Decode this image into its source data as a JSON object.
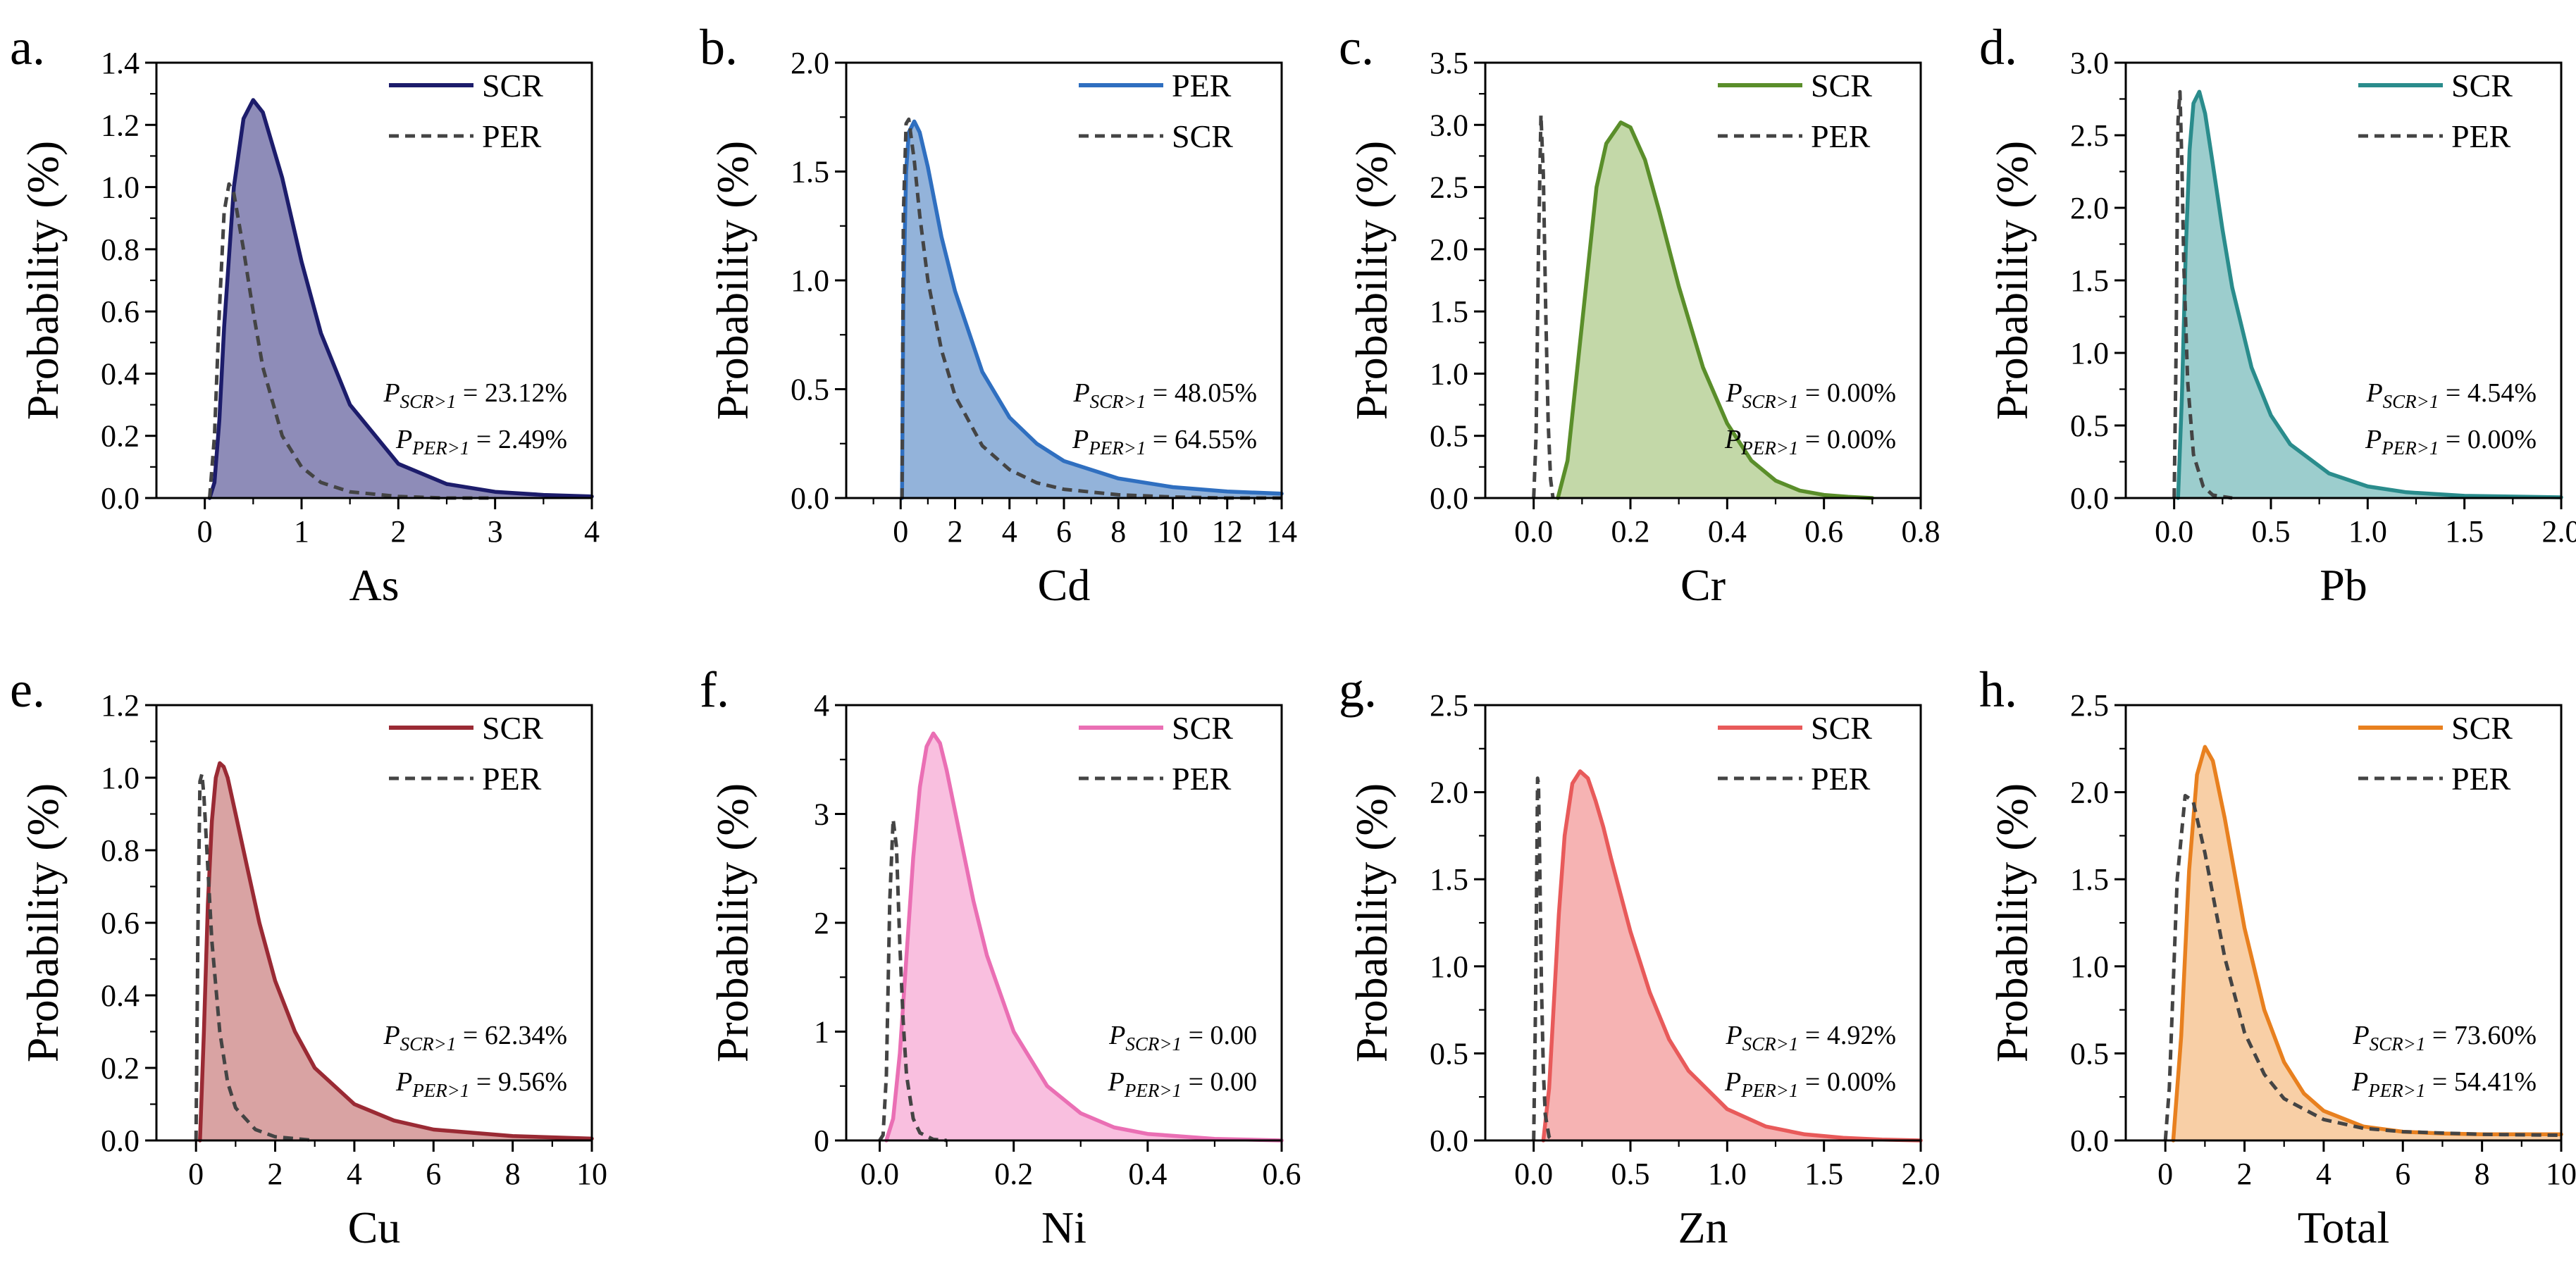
{
  "chart_data": [
    {
      "type": "area",
      "panel_label": "a.",
      "xlabel": "As",
      "ylabel": "Probability (%)",
      "xlim": [
        -0.5,
        4
      ],
      "ylim": [
        0,
        1.4
      ],
      "xticks": [
        0,
        1,
        2,
        3,
        4
      ],
      "yticks": [
        0.0,
        0.2,
        0.4,
        0.6,
        0.8,
        1.0,
        1.2,
        1.4
      ],
      "xtick_labels": [
        "0",
        "1",
        "2",
        "3",
        "4"
      ],
      "ytick_labels": [
        "0.0",
        "0.2",
        "0.4",
        "0.6",
        "0.8",
        "1.0",
        "1.2",
        "1.4"
      ],
      "legend": [
        "SCR",
        "PER"
      ],
      "series": [
        {
          "name": "SCR",
          "style": "solid-filled",
          "color": "#1c1c6b",
          "fill": "#8e8cb8",
          "x": [
            0.05,
            0.1,
            0.15,
            0.2,
            0.3,
            0.4,
            0.5,
            0.6,
            0.8,
            1.0,
            1.2,
            1.5,
            2.0,
            2.5,
            3.0,
            3.5,
            4.0
          ],
          "y": [
            0.0,
            0.05,
            0.25,
            0.55,
            1.0,
            1.22,
            1.28,
            1.24,
            1.03,
            0.76,
            0.53,
            0.3,
            0.11,
            0.045,
            0.02,
            0.01,
            0.005
          ]
        },
        {
          "name": "PER",
          "style": "dashed",
          "color": "#444444",
          "x": [
            0.05,
            0.1,
            0.15,
            0.2,
            0.25,
            0.3,
            0.4,
            0.5,
            0.6,
            0.8,
            1.0,
            1.2,
            1.5,
            2.0,
            2.5,
            3.0
          ],
          "y": [
            0.0,
            0.2,
            0.6,
            0.92,
            1.01,
            0.98,
            0.8,
            0.6,
            0.42,
            0.2,
            0.1,
            0.05,
            0.02,
            0.005,
            0.0,
            0.0
          ]
        }
      ],
      "annotations": [
        {
          "sub": "SCR>1",
          "value": "= 23.12%"
        },
        {
          "sub": "PER>1",
          "value": "= 2.49%"
        }
      ]
    },
    {
      "type": "area",
      "panel_label": "b.",
      "xlabel": "Cd",
      "ylabel": "Probability (%)",
      "xlim": [
        -2,
        14
      ],
      "ylim": [
        0,
        2.0
      ],
      "xticks": [
        0,
        2,
        4,
        6,
        8,
        10,
        12,
        14
      ],
      "yticks": [
        0.0,
        0.5,
        1.0,
        1.5,
        2.0
      ],
      "xtick_labels": [
        "0",
        "2",
        "4",
        "6",
        "8",
        "10",
        "12",
        "14"
      ],
      "ytick_labels": [
        "0.0",
        "0.5",
        "1.0",
        "1.5",
        "2.0"
      ],
      "legend": [
        "PER",
        "SCR"
      ],
      "series": [
        {
          "name": "PER",
          "style": "solid-filled",
          "color": "#2f6fc0",
          "fill": "#93b3da",
          "x": [
            0.05,
            0.1,
            0.2,
            0.3,
            0.5,
            0.7,
            1.0,
            1.5,
            2.0,
            3.0,
            4.0,
            5.0,
            6.0,
            8.0,
            10.0,
            12.0,
            14.0
          ],
          "y": [
            0.0,
            0.9,
            1.5,
            1.68,
            1.73,
            1.68,
            1.52,
            1.2,
            0.95,
            0.58,
            0.37,
            0.25,
            0.17,
            0.09,
            0.05,
            0.03,
            0.02
          ]
        },
        {
          "name": "SCR",
          "style": "dashed",
          "color": "#444444",
          "x": [
            0.05,
            0.1,
            0.2,
            0.3,
            0.5,
            0.7,
            1.0,
            1.5,
            2.0,
            3.0,
            4.0,
            5.0,
            6.0,
            8.0,
            10.0,
            12.0,
            14.0
          ],
          "y": [
            0.0,
            1.3,
            1.72,
            1.74,
            1.55,
            1.3,
            1.0,
            0.68,
            0.47,
            0.24,
            0.13,
            0.07,
            0.04,
            0.015,
            0.005,
            0.0,
            0.0
          ]
        }
      ],
      "annotations": [
        {
          "sub": "SCR>1",
          "value": "= 48.05%"
        },
        {
          "sub": "PER>1",
          "value": "= 64.55%"
        }
      ]
    },
    {
      "type": "area",
      "panel_label": "c.",
      "xlabel": "Cr",
      "ylabel": "Probability (%)",
      "xlim": [
        -0.1,
        0.8
      ],
      "ylim": [
        0,
        3.5
      ],
      "xticks": [
        0.0,
        0.2,
        0.4,
        0.6,
        0.8
      ],
      "yticks": [
        0.0,
        0.5,
        1.0,
        1.5,
        2.0,
        2.5,
        3.0,
        3.5
      ],
      "xtick_labels": [
        "0.0",
        "0.2",
        "0.4",
        "0.6",
        "0.8"
      ],
      "ytick_labels": [
        "0.0",
        "0.5",
        "1.0",
        "1.5",
        "2.0",
        "2.5",
        "3.0",
        "3.5"
      ],
      "legend": [
        "SCR",
        "PER"
      ],
      "series": [
        {
          "name": "SCR",
          "style": "solid-filled",
          "color": "#5a8e2a",
          "fill": "#c3d8a8",
          "x": [
            0.05,
            0.07,
            0.1,
            0.13,
            0.15,
            0.18,
            0.2,
            0.23,
            0.26,
            0.3,
            0.35,
            0.4,
            0.45,
            0.5,
            0.55,
            0.6,
            0.65,
            0.7
          ],
          "y": [
            0.0,
            0.3,
            1.4,
            2.5,
            2.85,
            3.02,
            2.98,
            2.72,
            2.3,
            1.7,
            1.05,
            0.6,
            0.3,
            0.14,
            0.06,
            0.025,
            0.01,
            0.0
          ]
        },
        {
          "name": "PER",
          "style": "dashed",
          "color": "#444444",
          "x": [
            0.0,
            0.005,
            0.01,
            0.015,
            0.02,
            0.025,
            0.03,
            0.035,
            0.04
          ],
          "y": [
            0.0,
            0.5,
            2.0,
            3.08,
            2.6,
            1.5,
            0.6,
            0.15,
            0.0
          ]
        }
      ],
      "annotations": [
        {
          "sub": "SCR>1",
          "value": "= 0.00%"
        },
        {
          "sub": "PER>1",
          "value": "= 0.00%"
        }
      ]
    },
    {
      "type": "area",
      "panel_label": "d.",
      "xlabel": "Pb",
      "ylabel": "Probability (%)",
      "xlim": [
        -0.25,
        2.0
      ],
      "ylim": [
        0,
        3.0
      ],
      "xticks": [
        0.0,
        0.5,
        1.0,
        1.5,
        2.0
      ],
      "yticks": [
        0.0,
        0.5,
        1.0,
        1.5,
        2.0,
        2.5,
        3.0
      ],
      "xtick_labels": [
        "0.0",
        "0.5",
        "1.0",
        "1.5",
        "2.0"
      ],
      "ytick_labels": [
        "0.0",
        "0.5",
        "1.0",
        "1.5",
        "2.0",
        "2.5",
        "3.0"
      ],
      "legend": [
        "SCR",
        "PER"
      ],
      "series": [
        {
          "name": "SCR",
          "style": "solid-filled",
          "color": "#2a8c8c",
          "fill": "#9ccdcd",
          "x": [
            0.02,
            0.04,
            0.06,
            0.08,
            0.1,
            0.13,
            0.16,
            0.2,
            0.25,
            0.3,
            0.4,
            0.5,
            0.6,
            0.8,
            1.0,
            1.2,
            1.5,
            2.0
          ],
          "y": [
            0.0,
            0.7,
            1.7,
            2.4,
            2.72,
            2.8,
            2.65,
            2.3,
            1.85,
            1.45,
            0.9,
            0.57,
            0.37,
            0.17,
            0.08,
            0.04,
            0.015,
            0.005
          ]
        },
        {
          "name": "PER",
          "style": "dashed",
          "color": "#444444",
          "x": [
            0.0,
            0.01,
            0.02,
            0.03,
            0.04,
            0.05,
            0.07,
            0.1,
            0.15,
            0.2,
            0.3
          ],
          "y": [
            0.0,
            1.0,
            2.6,
            2.8,
            2.3,
            1.6,
            0.8,
            0.3,
            0.08,
            0.02,
            0.0
          ]
        }
      ],
      "annotations": [
        {
          "sub": "SCR>1",
          "value": "= 4.54%"
        },
        {
          "sub": "PER>1",
          "value": "= 0.00%"
        }
      ]
    },
    {
      "type": "area",
      "panel_label": "e.",
      "xlabel": "Cu",
      "ylabel": "Probability (%)",
      "xlim": [
        -1,
        10
      ],
      "ylim": [
        0,
        1.2
      ],
      "xticks": [
        0,
        2,
        4,
        6,
        8,
        10
      ],
      "yticks": [
        0.0,
        0.2,
        0.4,
        0.6,
        0.8,
        1.0,
        1.2
      ],
      "xtick_labels": [
        "0",
        "2",
        "4",
        "6",
        "8",
        "10"
      ],
      "ytick_labels": [
        "0.0",
        "0.2",
        "0.4",
        "0.6",
        "0.8",
        "1.0",
        "1.2"
      ],
      "legend": [
        "SCR",
        "PER"
      ],
      "series": [
        {
          "name": "SCR",
          "style": "solid-filled",
          "color": "#9a2a34",
          "fill": "#d9a3a3",
          "x": [
            0.1,
            0.2,
            0.3,
            0.4,
            0.5,
            0.6,
            0.7,
            0.8,
            1.0,
            1.3,
            1.6,
            2.0,
            2.5,
            3.0,
            4.0,
            5.0,
            6.0,
            8.0,
            10.0
          ],
          "y": [
            0.0,
            0.3,
            0.65,
            0.88,
            1.0,
            1.04,
            1.03,
            1.0,
            0.9,
            0.75,
            0.6,
            0.44,
            0.3,
            0.2,
            0.1,
            0.055,
            0.03,
            0.012,
            0.005
          ]
        },
        {
          "name": "PER",
          "style": "dashed",
          "color": "#444444",
          "x": [
            0.0,
            0.05,
            0.1,
            0.15,
            0.2,
            0.3,
            0.4,
            0.6,
            0.8,
            1.0,
            1.5,
            2.0,
            3.0
          ],
          "y": [
            0.0,
            0.6,
            0.99,
            1.01,
            0.95,
            0.75,
            0.55,
            0.3,
            0.16,
            0.09,
            0.03,
            0.01,
            0.0
          ]
        }
      ],
      "annotations": [
        {
          "sub": "SCR>1",
          "value": "= 62.34%"
        },
        {
          "sub": "PER>1",
          "value": "= 9.56%"
        }
      ]
    },
    {
      "type": "area",
      "panel_label": "f.",
      "xlabel": "Ni",
      "ylabel": "Probability (%)",
      "xlim": [
        -0.05,
        0.6
      ],
      "ylim": [
        0,
        4
      ],
      "xticks": [
        0.0,
        0.2,
        0.4,
        0.6
      ],
      "yticks": [
        0,
        1,
        2,
        3,
        4
      ],
      "xtick_labels": [
        "0.0",
        "0.2",
        "0.4",
        "0.6"
      ],
      "ytick_labels": [
        "0",
        "1",
        "2",
        "3",
        "4"
      ],
      "legend": [
        "SCR",
        "PER"
      ],
      "series": [
        {
          "name": "SCR",
          "style": "solid-filled",
          "color": "#ea6fb4",
          "fill": "#f9bfdf",
          "x": [
            0.01,
            0.02,
            0.03,
            0.04,
            0.05,
            0.06,
            0.07,
            0.08,
            0.09,
            0.1,
            0.12,
            0.14,
            0.16,
            0.2,
            0.25,
            0.3,
            0.35,
            0.4,
            0.5,
            0.6
          ],
          "y": [
            0.0,
            0.2,
            0.8,
            1.7,
            2.6,
            3.25,
            3.62,
            3.74,
            3.65,
            3.4,
            2.8,
            2.2,
            1.7,
            1.0,
            0.5,
            0.25,
            0.12,
            0.06,
            0.015,
            0.0
          ]
        },
        {
          "name": "PER",
          "style": "dashed",
          "color": "#444444",
          "x": [
            0.0,
            0.005,
            0.01,
            0.015,
            0.02,
            0.025,
            0.03,
            0.035,
            0.04,
            0.05,
            0.06,
            0.08,
            0.1
          ],
          "y": [
            0.0,
            0.05,
            0.6,
            2.2,
            2.95,
            2.7,
            1.8,
            1.1,
            0.6,
            0.2,
            0.07,
            0.01,
            0.0
          ]
        }
      ],
      "annotations": [
        {
          "sub": "SCR>1",
          "value": "= 0.00"
        },
        {
          "sub": "PER>1",
          "value": "= 0.00"
        }
      ]
    },
    {
      "type": "area",
      "panel_label": "g.",
      "xlabel": "Zn",
      "ylabel": "Probability (%)",
      "xlim": [
        -0.25,
        2.0
      ],
      "ylim": [
        0,
        2.5
      ],
      "xticks": [
        0.0,
        0.5,
        1.0,
        1.5,
        2.0
      ],
      "yticks": [
        0.0,
        0.5,
        1.0,
        1.5,
        2.0,
        2.5
      ],
      "xtick_labels": [
        "0.0",
        "0.5",
        "1.0",
        "1.5",
        "2.0"
      ],
      "ytick_labels": [
        "0.0",
        "0.5",
        "1.0",
        "1.5",
        "2.0",
        "2.5"
      ],
      "legend": [
        "SCR",
        "PER"
      ],
      "series": [
        {
          "name": "SCR",
          "style": "solid-filled",
          "color": "#e85a5a",
          "fill": "#f6b3b3",
          "x": [
            0.05,
            0.08,
            0.1,
            0.13,
            0.16,
            0.2,
            0.24,
            0.28,
            0.32,
            0.36,
            0.4,
            0.5,
            0.6,
            0.7,
            0.8,
            1.0,
            1.2,
            1.4,
            1.6,
            1.8,
            2.0
          ],
          "y": [
            0.0,
            0.3,
            0.7,
            1.3,
            1.75,
            2.05,
            2.12,
            2.08,
            1.95,
            1.8,
            1.62,
            1.2,
            0.85,
            0.58,
            0.4,
            0.18,
            0.08,
            0.035,
            0.015,
            0.005,
            0.0
          ]
        },
        {
          "name": "PER",
          "style": "dashed",
          "color": "#444444",
          "x": [
            0.0,
            0.01,
            0.02,
            0.025,
            0.03,
            0.04,
            0.05,
            0.06,
            0.08,
            0.1
          ],
          "y": [
            0.0,
            0.8,
            2.08,
            2.05,
            1.7,
            0.9,
            0.4,
            0.15,
            0.02,
            0.0
          ]
        }
      ],
      "annotations": [
        {
          "sub": "SCR>1",
          "value": "= 4.92%"
        },
        {
          "sub": "PER>1",
          "value": "= 0.00%"
        }
      ]
    },
    {
      "type": "area",
      "panel_label": "h.",
      "xlabel": "Total",
      "ylabel": "Probability (%)",
      "xlim": [
        -1,
        10
      ],
      "ylim": [
        0,
        2.5
      ],
      "xticks": [
        0,
        2,
        4,
        6,
        8,
        10
      ],
      "yticks": [
        0.0,
        0.5,
        1.0,
        1.5,
        2.0,
        2.5
      ],
      "xtick_labels": [
        "0",
        "2",
        "4",
        "6",
        "8",
        "10"
      ],
      "ytick_labels": [
        "0.0",
        "0.5",
        "1.0",
        "1.5",
        "2.0",
        "2.5"
      ],
      "legend": [
        "SCR",
        "PER"
      ],
      "series": [
        {
          "name": "SCR",
          "style": "solid-filled",
          "color": "#e8801f",
          "fill": "#f8cfa6",
          "x": [
            0.2,
            0.4,
            0.6,
            0.8,
            1.0,
            1.2,
            1.5,
            2.0,
            2.5,
            3.0,
            3.5,
            4.0,
            5.0,
            6.0,
            7.0,
            8.0,
            10.0
          ],
          "y": [
            0.0,
            0.6,
            1.55,
            2.1,
            2.26,
            2.18,
            1.85,
            1.22,
            0.75,
            0.45,
            0.27,
            0.17,
            0.08,
            0.05,
            0.04,
            0.035,
            0.035
          ]
        },
        {
          "name": "PER",
          "style": "dashed",
          "color": "#444444",
          "x": [
            0.0,
            0.1,
            0.2,
            0.3,
            0.5,
            0.7,
            1.0,
            1.5,
            2.0,
            2.5,
            3.0,
            4.0,
            5.0,
            6.0,
            8.0,
            10.0
          ],
          "y": [
            0.0,
            0.3,
            0.9,
            1.5,
            1.98,
            1.95,
            1.65,
            1.05,
            0.62,
            0.38,
            0.24,
            0.12,
            0.07,
            0.05,
            0.035,
            0.03
          ]
        }
      ],
      "annotations": [
        {
          "sub": "SCR>1",
          "value": "= 73.60%"
        },
        {
          "sub": "PER>1",
          "value": "= 54.41%"
        }
      ]
    }
  ]
}
